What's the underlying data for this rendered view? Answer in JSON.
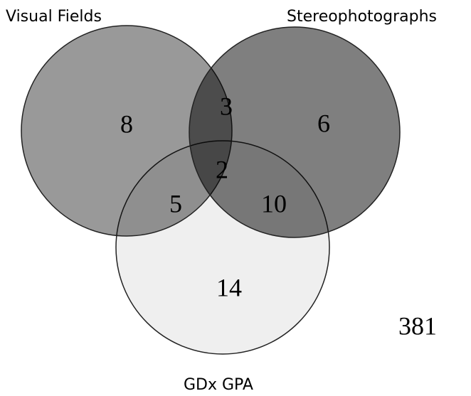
{
  "sets": [
    "Visual Fields",
    "Stereophotographs",
    "GDx GPA"
  ],
  "regions": [
    8,
    3,
    6,
    2,
    5,
    10,
    14
  ],
  "outside": 381
}
